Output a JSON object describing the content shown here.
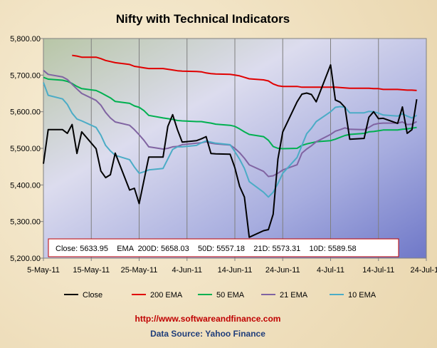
{
  "chart_data": {
    "type": "line",
    "title": "Nifty with Technical Indicators",
    "x": [
      "5-May-11",
      "6-May-11",
      "9-May-11",
      "10-May-11",
      "11-May-11",
      "12-May-11",
      "13-May-11",
      "16-May-11",
      "17-May-11",
      "18-May-11",
      "19-May-11",
      "20-May-11",
      "23-May-11",
      "24-May-11",
      "25-May-11",
      "26-May-11",
      "27-May-11",
      "30-May-11",
      "31-May-11",
      "1-Jun-11",
      "2-Jun-11",
      "3-Jun-11",
      "6-Jun-11",
      "7-Jun-11",
      "8-Jun-11",
      "9-Jun-11",
      "10-Jun-11",
      "13-Jun-11",
      "14-Jun-11",
      "15-Jun-11",
      "16-Jun-11",
      "17-Jun-11",
      "20-Jun-11",
      "21-Jun-11",
      "22-Jun-11",
      "23-Jun-11",
      "24-Jun-11",
      "27-Jun-11",
      "28-Jun-11",
      "29-Jun-11",
      "30-Jun-11",
      "1-Jul-11",
      "4-Jul-11",
      "5-Jul-11",
      "6-Jul-11",
      "7-Jul-11",
      "8-Jul-11",
      "11-Jul-11",
      "12-Jul-11",
      "13-Jul-11",
      "14-Jul-11",
      "15-Jul-11",
      "18-Jul-11",
      "19-Jul-11",
      "20-Jul-11",
      "21-Jul-11",
      "22-Jul-11"
    ],
    "series": [
      {
        "name": "Close",
        "color": "#000000",
        "values": [
          5458,
          5551,
          5551,
          5541,
          5565,
          5486,
          5545,
          5499,
          5438,
          5420,
          5428,
          5487,
          5386,
          5391,
          5349,
          5412,
          5476,
          5476,
          5560,
          5592,
          5551,
          5517,
          5521,
          5526,
          5532,
          5486,
          5485,
          5484,
          5447,
          5396,
          5367,
          5257,
          5275,
          5278,
          5320,
          5471,
          5545,
          5627,
          5648,
          5651,
          5647,
          5627,
          5728,
          5632,
          5626,
          5612,
          5525,
          5527,
          5585,
          5600,
          5581,
          5582,
          5568,
          5613,
          5541,
          5551,
          5634
        ]
      },
      {
        "name": "200 EMA",
        "color": "#e00000",
        "values": [
          null,
          null,
          null,
          null,
          5754,
          5752,
          5749,
          5749,
          5745,
          5740,
          5737,
          5734,
          5729,
          5724,
          5722,
          5720,
          5718,
          5718,
          5716,
          5714,
          5712,
          5711,
          5710,
          5709,
          5706,
          5704,
          5703,
          5702,
          5700,
          5698,
          5694,
          5690,
          5687,
          5684,
          5676,
          5671,
          5669,
          5669,
          5667,
          5667,
          5667,
          5667,
          5667,
          5667,
          5666,
          5665,
          5664,
          5664,
          5664,
          5663,
          5663,
          5661,
          5661,
          5660,
          5659,
          5659,
          5658
        ]
      },
      {
        "name": "50 EMA",
        "color": "#00b050",
        "values": [
          5694,
          5689,
          5686,
          5683,
          5677,
          5669,
          5663,
          5658,
          5652,
          5645,
          5638,
          5628,
          5623,
          5616,
          5612,
          5603,
          5590,
          5583,
          5581,
          5579,
          5576,
          5575,
          5573,
          5573,
          5571,
          5569,
          5566,
          5563,
          5560,
          5553,
          5545,
          5538,
          5532,
          5522,
          5505,
          5500,
          5499,
          5500,
          5508,
          5512,
          5515,
          5518,
          5521,
          5525,
          5530,
          5535,
          5538,
          5541,
          5545,
          5546,
          5548,
          5550,
          5550,
          5552,
          5553,
          5555,
          5557
        ]
      },
      {
        "name": "21 EMA",
        "color": "#8064a2",
        "values": [
          5713,
          5702,
          5695,
          5688,
          5675,
          5662,
          5650,
          5631,
          5618,
          5598,
          5583,
          5572,
          5563,
          5551,
          5537,
          5522,
          5504,
          5498,
          5500,
          5504,
          5505,
          5510,
          5514,
          5515,
          5518,
          5514,
          5512,
          5509,
          5500,
          5488,
          5473,
          5455,
          5437,
          5423,
          5425,
          5432,
          5441,
          5455,
          5487,
          5498,
          5507,
          5518,
          5538,
          5547,
          5551,
          5556,
          5552,
          5551,
          5557,
          5565,
          5568,
          5569,
          5569,
          5572,
          5565,
          5566,
          5573
        ]
      },
      {
        "name": "10 EMA",
        "color": "#4bacc6",
        "values": [
          5680,
          5645,
          5635,
          5620,
          5596,
          5580,
          5575,
          5557,
          5536,
          5508,
          5493,
          5481,
          5469,
          5449,
          5432,
          5436,
          5441,
          5445,
          5471,
          5497,
          5504,
          5504,
          5508,
          5515,
          5520,
          5517,
          5514,
          5510,
          5491,
          5470,
          5445,
          5409,
          5380,
          5367,
          5380,
          5404,
          5432,
          5475,
          5508,
          5540,
          5555,
          5573,
          5600,
          5612,
          5614,
          5612,
          5597,
          5597,
          5601,
          5600,
          5596,
          5591,
          5588,
          5594,
          5588,
          5583,
          5590
        ]
      }
    ],
    "xlabel": "",
    "ylabel": "",
    "ylim": [
      5200,
      5800
    ],
    "yticks": [
      "5,200.00",
      "5,300.00",
      "5,400.00",
      "5,500.00",
      "5,600.00",
      "5,700.00",
      "5,800.00"
    ],
    "xtick_labels": [
      "5-May-11",
      "15-May-11",
      "25-May-11",
      "4-Jun-11",
      "14-Jun-11",
      "24-Jun-11",
      "4-Jul-11",
      "14-Jul-11",
      "24-Jul-11"
    ],
    "grid": "vertical",
    "legend": "bottom",
    "annotation": "Close: 5633.95    EMA  200D: 5658.03    50D: 5557.18    21D: 5573.31    10D: 5589.58"
  },
  "footer": {
    "url": "http://www.softwareandfinance.com",
    "source": "Data Source: Yahoo Finance"
  }
}
